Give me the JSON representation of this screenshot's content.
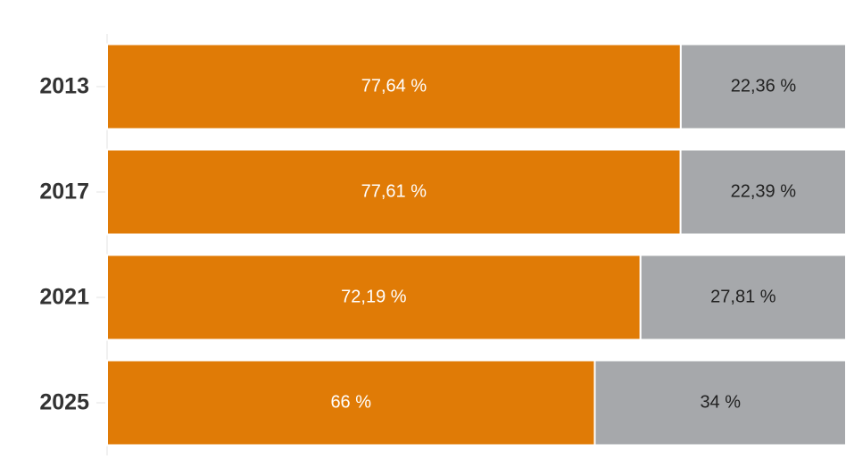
{
  "chart_data": {
    "type": "stacked-barh",
    "categories": [
      "2013",
      "2017",
      "2021",
      "2025"
    ],
    "series": [
      {
        "color": "#e07b06",
        "label_color": "#ffffff",
        "values": [
          77.64,
          77.61,
          72.19,
          66
        ],
        "value_labels": [
          "77,64 %",
          "77,61 %",
          "72,19 %",
          "66 %"
        ]
      },
      {
        "color": "#a6a8ab",
        "label_color": "#222222",
        "values": [
          22.36,
          22.39,
          27.81,
          34
        ],
        "value_labels": [
          "22,36 %",
          "22,39 %",
          "27,81 %",
          "34 %"
        ]
      }
    ],
    "xlim": [
      0,
      100
    ]
  }
}
